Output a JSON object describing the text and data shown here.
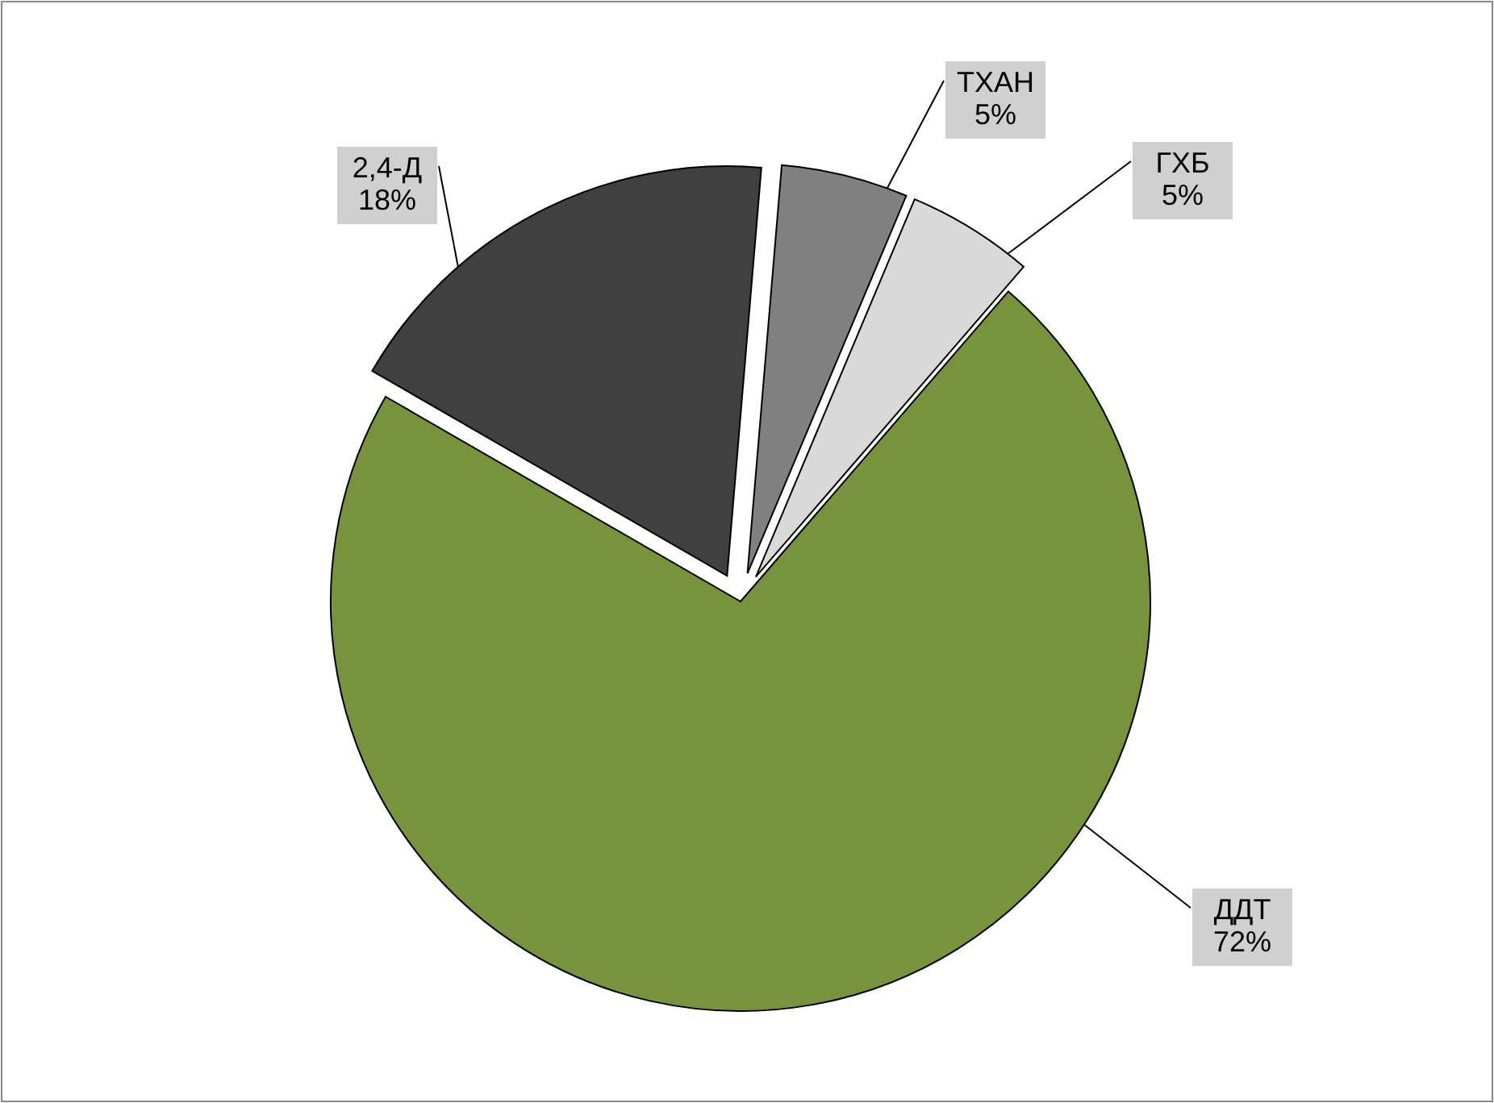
{
  "chart_data": {
    "type": "pie",
    "categories": [
      "ДДТ",
      "2,4-Д",
      "ТХАН",
      "ГХБ"
    ],
    "values": [
      72,
      18,
      5,
      5
    ],
    "value_labels": [
      "72%",
      "18%",
      "5%",
      "5%"
    ],
    "colors": [
      "#77933c",
      "#404040",
      "#808080",
      "#d9d9d9"
    ]
  }
}
